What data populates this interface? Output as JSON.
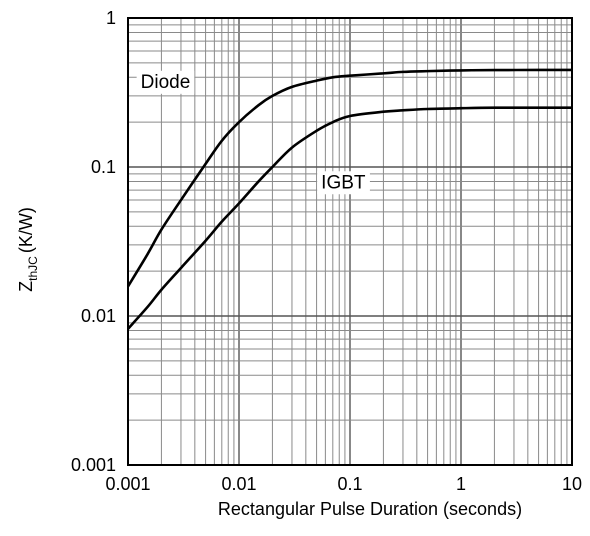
{
  "chart_data": {
    "type": "line",
    "title": "",
    "xlabel": "Rectangular Pulse Duration (seconds)",
    "ylabel": {
      "main": "Z",
      "sub": "thJC",
      "unit": "(K/W)"
    },
    "xscale": "log",
    "yscale": "log",
    "xlim": [
      0.001,
      10
    ],
    "ylim": [
      0.001,
      1
    ],
    "grid": true,
    "legend": "none",
    "x_ticks": [
      "0.001",
      "0.01",
      "0.1",
      "1",
      "10"
    ],
    "y_ticks": [
      "0.001",
      "0.01",
      "0.1",
      "1"
    ],
    "series": [
      {
        "name": "Diode",
        "color": "#000000",
        "x": [
          0.001,
          0.0015,
          0.002,
          0.003,
          0.005,
          0.007,
          0.01,
          0.015,
          0.02,
          0.03,
          0.05,
          0.07,
          0.1,
          0.2,
          0.3,
          0.5,
          1,
          2,
          5,
          10
        ],
        "y": [
          0.0158,
          0.026,
          0.038,
          0.06,
          0.105,
          0.15,
          0.2,
          0.26,
          0.3,
          0.345,
          0.38,
          0.4,
          0.41,
          0.425,
          0.435,
          0.44,
          0.445,
          0.447,
          0.448,
          0.448
        ]
      },
      {
        "name": "IGBT",
        "color": "#000000",
        "x": [
          0.001,
          0.0015,
          0.002,
          0.003,
          0.005,
          0.007,
          0.01,
          0.015,
          0.02,
          0.03,
          0.05,
          0.07,
          0.1,
          0.2,
          0.3,
          0.5,
          1,
          2,
          5,
          10
        ],
        "y": [
          0.0082,
          0.0115,
          0.015,
          0.021,
          0.032,
          0.043,
          0.057,
          0.08,
          0.1,
          0.135,
          0.175,
          0.2,
          0.22,
          0.235,
          0.24,
          0.245,
          0.248,
          0.25,
          0.25,
          0.25
        ]
      }
    ]
  }
}
